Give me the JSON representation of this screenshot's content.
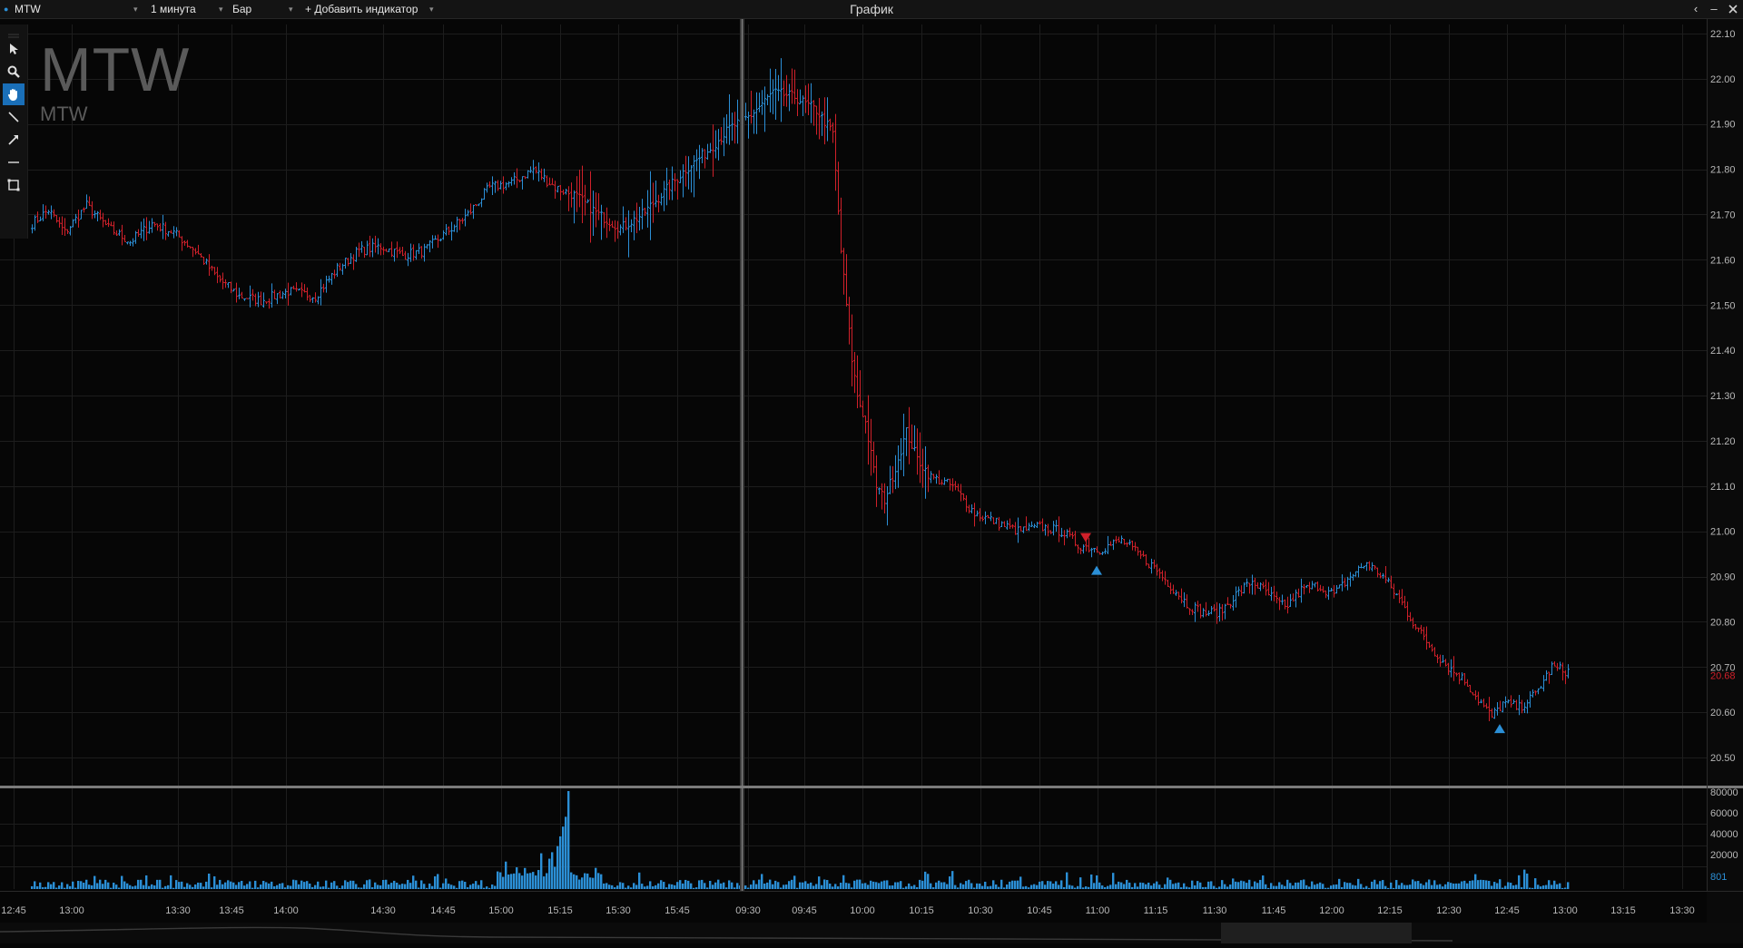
{
  "header": {
    "symbol": "MTW",
    "interval": "1 минута",
    "chart_style": "Бар",
    "add_indicator": "+ Добавить индикатор",
    "window_title": "График",
    "btn_back": "‹",
    "btn_minimize": "–"
  },
  "chart_overlay": {
    "title": "MTW",
    "subtitle": "MTW"
  },
  "chart_data": {
    "type": "bar",
    "title": "MTW",
    "subtitle": "MTW",
    "price_ticks": [
      "22.10",
      "22.00",
      "21.90",
      "21.80",
      "21.70",
      "21.60",
      "21.50",
      "21.40",
      "21.30",
      "21.20",
      "21.10",
      "21.00",
      "20.90",
      "20.80",
      "20.70",
      "20.60",
      "20.50"
    ],
    "price_range": [
      20.45,
      22.12
    ],
    "last_price_label": "20.68",
    "last_price": 20.68,
    "volume_ticks": [
      "80000",
      "60000",
      "40000",
      "20000",
      "801"
    ],
    "volume_range": [
      0,
      80000
    ],
    "time_ticks": [
      "12:45",
      "13:00",
      "13:30",
      "13:45",
      "14:00",
      "14:30",
      "14:45",
      "15:00",
      "15:15",
      "15:30",
      "15:45",
      "09:30",
      "09:45",
      "10:00",
      "10:15",
      "10:30",
      "10:45",
      "11:00",
      "11:15",
      "11:30",
      "11:45",
      "12:00",
      "12:15",
      "12:30",
      "12:45",
      "13:00",
      "13:15",
      "13:30"
    ],
    "colors": {
      "up": "#2b8fd6",
      "down": "#d0202a",
      "volume": "#2b8fd6",
      "grid": "#1d1d1d",
      "axis_text": "#b8b8b8",
      "separator": "#888888"
    },
    "session_break_index": 197,
    "close_path": [
      [
        0,
        21.68
      ],
      [
        6,
        21.71
      ],
      [
        12,
        21.66
      ],
      [
        20,
        21.72
      ],
      [
        28,
        21.67
      ],
      [
        36,
        21.64
      ],
      [
        44,
        21.68
      ],
      [
        52,
        21.66
      ],
      [
        60,
        21.62
      ],
      [
        68,
        21.56
      ],
      [
        76,
        21.52
      ],
      [
        84,
        21.51
      ],
      [
        94,
        21.53
      ],
      [
        104,
        21.52
      ],
      [
        112,
        21.58
      ],
      [
        120,
        21.62
      ],
      [
        128,
        21.63
      ],
      [
        136,
        21.61
      ],
      [
        144,
        21.62
      ],
      [
        152,
        21.66
      ],
      [
        160,
        21.7
      ],
      [
        168,
        21.76
      ],
      [
        176,
        21.77
      ],
      [
        184,
        21.8
      ],
      [
        192,
        21.76
      ],
      [
        200,
        21.74
      ],
      [
        208,
        21.7
      ],
      [
        216,
        21.67
      ],
      [
        224,
        21.7
      ],
      [
        232,
        21.75
      ],
      [
        240,
        21.8
      ],
      [
        248,
        21.84
      ],
      [
        256,
        21.89
      ],
      [
        264,
        21.92
      ],
      [
        272,
        21.97
      ],
      [
        280,
        21.96
      ],
      [
        288,
        21.93
      ],
      [
        294,
        21.88
      ],
      [
        297,
        21.62
      ],
      [
        299,
        21.5
      ],
      [
        301,
        21.38
      ],
      [
        303,
        21.3
      ],
      [
        306,
        21.24
      ],
      [
        310,
        21.1
      ],
      [
        313,
        21.07
      ],
      [
        317,
        21.14
      ],
      [
        321,
        21.22
      ],
      [
        325,
        21.16
      ],
      [
        330,
        21.12
      ],
      [
        338,
        21.1
      ],
      [
        346,
        21.04
      ],
      [
        354,
        21.02
      ],
      [
        362,
        21.0
      ],
      [
        370,
        21.01
      ],
      [
        378,
        21.0
      ],
      [
        384,
        20.97
      ],
      [
        392,
        20.96
      ],
      [
        400,
        20.98
      ],
      [
        406,
        20.95
      ],
      [
        412,
        20.92
      ],
      [
        418,
        20.88
      ],
      [
        424,
        20.84
      ],
      [
        430,
        20.82
      ],
      [
        436,
        20.82
      ],
      [
        442,
        20.86
      ],
      [
        448,
        20.89
      ],
      [
        454,
        20.86
      ],
      [
        460,
        20.83
      ],
      [
        466,
        20.87
      ],
      [
        472,
        20.88
      ],
      [
        478,
        20.86
      ],
      [
        484,
        20.9
      ],
      [
        490,
        20.93
      ],
      [
        496,
        20.9
      ],
      [
        502,
        20.85
      ],
      [
        508,
        20.79
      ],
      [
        514,
        20.74
      ],
      [
        520,
        20.7
      ],
      [
        526,
        20.67
      ],
      [
        532,
        20.62
      ],
      [
        536,
        20.59
      ],
      [
        540,
        20.62
      ],
      [
        546,
        20.61
      ],
      [
        552,
        20.64
      ],
      [
        558,
        20.7
      ],
      [
        564,
        20.69
      ]
    ],
    "signals": [
      {
        "type": "sell",
        "index": 387,
        "price": 20.98
      },
      {
        "type": "buy",
        "index": 391,
        "price": 20.94
      },
      {
        "type": "buy",
        "index": 539,
        "price": 20.59
      }
    ]
  }
}
